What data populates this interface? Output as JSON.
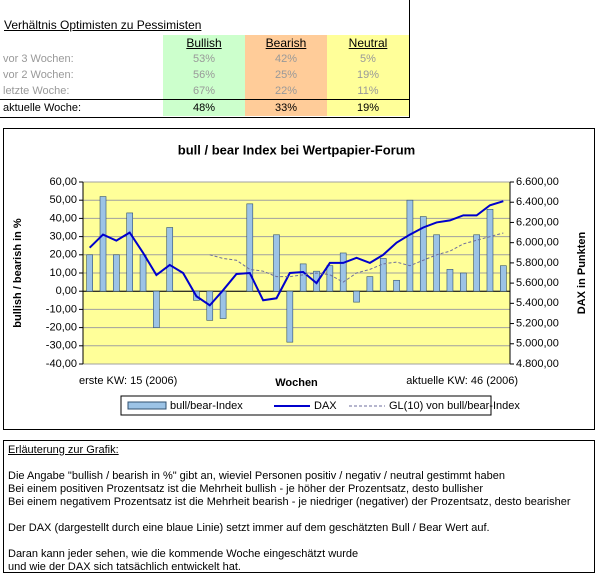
{
  "table": {
    "title": "Verhältnis Optimisten zu Pessimisten",
    "columns": [
      "Bullish",
      "Bearish",
      "Neutral"
    ],
    "rows": [
      [
        "vor 3 Wochen:",
        "53%",
        "42%",
        "5%"
      ],
      [
        "vor 2 Wochen:",
        "56%",
        "25%",
        "19%"
      ],
      [
        "letzte Woche:",
        "67%",
        "22%",
        "11%"
      ],
      [
        "aktuelle Woche:",
        "48%",
        "33%",
        "19%"
      ]
    ]
  },
  "chart_data": {
    "type": "bar",
    "title": "bull / bear Index bei Wertpapier-Forum",
    "y_label": "bullish / bearish in %",
    "y2_label": "DAX in Punkten",
    "x_label": "Wochen",
    "x_start_label": "erste KW: 15 (2006)",
    "x_end_label": "aktuelle KW: 46 (2006)",
    "grid": true,
    "ylim": [
      -40,
      60
    ],
    "yticks": [
      {
        "value": -40,
        "label": "-40,00"
      },
      {
        "value": -30,
        "label": "-30,00"
      },
      {
        "value": -20,
        "label": "-20,00"
      },
      {
        "value": -10,
        "label": "-10,00"
      },
      {
        "value": 0,
        "label": "0,00"
      },
      {
        "value": 10,
        "label": "10,00"
      },
      {
        "value": 20,
        "label": "20,00"
      },
      {
        "value": 30,
        "label": "30,00"
      },
      {
        "value": 40,
        "label": "40,00"
      },
      {
        "value": 50,
        "label": "50,00"
      },
      {
        "value": 60,
        "label": "60,00"
      }
    ],
    "y2lim": [
      4800,
      6600
    ],
    "y2ticks": [
      {
        "value": 4800,
        "label": "4.800,00"
      },
      {
        "value": 5000,
        "label": "5.000,00"
      },
      {
        "value": 5200,
        "label": "5.200,00"
      },
      {
        "value": 5400,
        "label": "5.400,00"
      },
      {
        "value": 5600,
        "label": "5.600,00"
      },
      {
        "value": 5800,
        "label": "5.800,00"
      },
      {
        "value": 6000,
        "label": "6.000,00"
      },
      {
        "value": 6200,
        "label": "6.200,00"
      },
      {
        "value": 6400,
        "label": "6.400,00"
      },
      {
        "value": 6600,
        "label": "6.600,00"
      }
    ],
    "series": [
      {
        "name": "bull/bear-Index",
        "type": "bar",
        "color": "#9cc3e6",
        "values": [
          20,
          52,
          20,
          43,
          20,
          -20,
          35,
          0,
          -5,
          -16,
          -15,
          0,
          48,
          0,
          31,
          -28,
          15,
          11,
          14,
          21,
          -6,
          8,
          18,
          6,
          50,
          41,
          31,
          12,
          10,
          31,
          45,
          14
        ]
      },
      {
        "name": "DAX",
        "type": "line",
        "axis": "y2",
        "color": "#0000cc",
        "values": [
          5950,
          6080,
          6020,
          6100,
          5900,
          5680,
          5780,
          5700,
          5470,
          5380,
          5530,
          5690,
          5700,
          5430,
          5450,
          5700,
          5710,
          5600,
          5800,
          5800,
          5850,
          5800,
          5880,
          6000,
          6080,
          6150,
          6200,
          6220,
          6270,
          6270,
          6370,
          6410
        ]
      },
      {
        "name": "GL(10) von bull/bear-Index",
        "type": "dashed",
        "color": "#6d6d9c",
        "values": [
          null,
          null,
          null,
          null,
          null,
          null,
          null,
          null,
          null,
          20,
          18,
          17,
          12,
          11,
          8,
          8,
          9,
          10,
          9,
          5,
          10,
          12,
          15,
          16,
          14,
          17,
          20,
          22,
          26,
          28,
          30,
          32
        ]
      }
    ]
  },
  "notes": {
    "title": "Erläuterung zur Grafik:",
    "lines": [
      "Die Angabe \"bullish / bearish in %\" gibt an, wieviel Personen positiv / negativ / neutral gestimmt haben",
      "Bei einem positiven Prozentsatz ist die Mehrheit bullish - je höher der Prozentsatz, desto bullisher",
      "Bei einem negativem Prozentsatz ist die Mehrheit bearish - je niedriger (negativer) der Prozentsatz, desto bearisher",
      "Der DAX (dargestellt durch eine blaue Linie) setzt immer auf dem geschätzten Bull / Bear Wert auf.",
      "Daran kann jeder sehen, wie die kommende Woche eingeschätzt wurde",
      "und wie der DAX sich tatsächlich entwickelt hat."
    ]
  }
}
